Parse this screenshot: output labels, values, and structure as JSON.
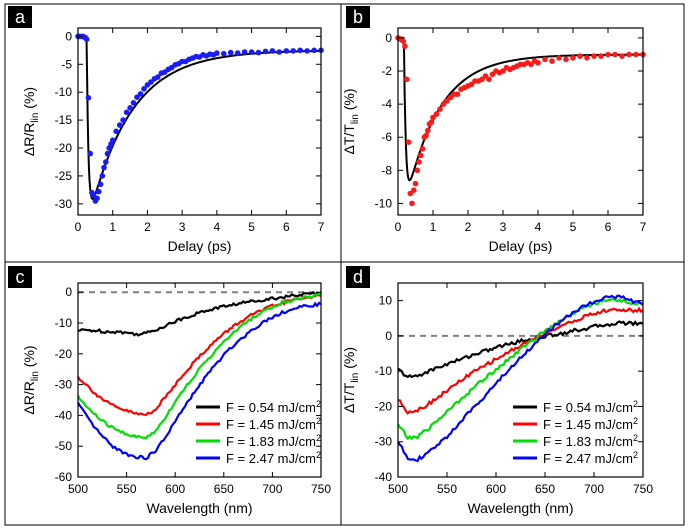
{
  "chart_data": [
    {
      "panel_label": "a",
      "type": "scatter",
      "xlabel": "Delay (ps)",
      "ylabel_main": "ΔR/R",
      "ylabel_sub": "lin",
      "ylabel_unit": " (%)",
      "xlim": [
        0,
        7
      ],
      "ylim": [
        -32,
        1.5
      ],
      "xticks": [
        0,
        1,
        2,
        3,
        4,
        5,
        6,
        7
      ],
      "yticks": [
        0,
        -5,
        -10,
        -15,
        -20,
        -25,
        -30
      ],
      "marker_color": "#1a1aff",
      "line_color": "#000000",
      "fit": {
        "t0": 0.25,
        "tau_rise": 0.05,
        "A": -34.5,
        "C": -2.5,
        "tau_decay": 1.2
      },
      "x": [
        0,
        0.05,
        0.1,
        0.15,
        0.2,
        0.25,
        0.3,
        0.35,
        0.4,
        0.45,
        0.5,
        0.55,
        0.6,
        0.65,
        0.7,
        0.75,
        0.8,
        0.85,
        0.9,
        0.95,
        1.0,
        1.1,
        1.2,
        1.3,
        1.4,
        1.5,
        1.6,
        1.7,
        1.8,
        1.9,
        2.0,
        2.1,
        2.2,
        2.3,
        2.4,
        2.5,
        2.6,
        2.7,
        2.8,
        2.9,
        3.0,
        3.1,
        3.2,
        3.3,
        3.4,
        3.5,
        3.6,
        3.7,
        3.8,
        3.9,
        4.0,
        4.2,
        4.4,
        4.6,
        4.8,
        5.0,
        5.2,
        5.4,
        5.6,
        5.8,
        6.0,
        6.2,
        6.4,
        6.6,
        6.8,
        7.0
      ],
      "y": [
        0,
        0,
        0,
        0,
        -0.2,
        -0.5,
        -11,
        -21,
        -28,
        -28.5,
        -29.5,
        -29,
        -27.8,
        -26.5,
        -25,
        -23.5,
        -22.5,
        -21,
        -20,
        -19.3,
        -18.6,
        -17,
        -15.9,
        -15,
        -13.6,
        -12.8,
        -11.9,
        -10.9,
        -10.3,
        -9.4,
        -8.7,
        -8.2,
        -7.6,
        -7.3,
        -6.6,
        -6.4,
        -5.9,
        -5.6,
        -5.1,
        -4.9,
        -4.5,
        -4.5,
        -4.1,
        -3.9,
        -3.6,
        -3.7,
        -3.3,
        -3.5,
        -3.2,
        -3.3,
        -3.0,
        -3.1,
        -2.9,
        -3.0,
        -2.8,
        -2.8,
        -2.9,
        -2.7,
        -2.6,
        -2.8,
        -2.6,
        -2.6,
        -2.5,
        -2.6,
        -2.5,
        -2.5
      ]
    },
    {
      "panel_label": "b",
      "type": "scatter",
      "xlabel": "Delay (ps)",
      "ylabel_main": "ΔT/T",
      "ylabel_sub": "lin",
      "ylabel_unit": " (%)",
      "xlim": [
        0,
        7
      ],
      "ylim": [
        -10.7,
        0.6
      ],
      "xticks": [
        0,
        1,
        2,
        3,
        4,
        5,
        6,
        7
      ],
      "yticks": [
        0,
        -2,
        -4,
        -6,
        -8,
        -10
      ],
      "marker_color": "#ff1a1a",
      "line_color": "#000000",
      "fit": {
        "t0": 0.17,
        "tau_rise": 0.05,
        "A": -10.5,
        "C": -1.0,
        "tau_decay": 0.95
      },
      "x": [
        0,
        0.05,
        0.1,
        0.15,
        0.2,
        0.25,
        0.3,
        0.35,
        0.4,
        0.45,
        0.5,
        0.55,
        0.6,
        0.65,
        0.7,
        0.75,
        0.8,
        0.85,
        0.9,
        0.95,
        1.0,
        1.1,
        1.2,
        1.3,
        1.4,
        1.5,
        1.6,
        1.7,
        1.8,
        1.9,
        2.0,
        2.1,
        2.2,
        2.3,
        2.4,
        2.5,
        2.6,
        2.7,
        2.8,
        2.9,
        3.0,
        3.1,
        3.2,
        3.3,
        3.4,
        3.5,
        3.6,
        3.7,
        3.8,
        3.9,
        4.0,
        4.2,
        4.4,
        4.6,
        4.8,
        5.0,
        5.2,
        5.4,
        5.6,
        5.8,
        6.0,
        6.2,
        6.4,
        6.6,
        6.8,
        7.0
      ],
      "y": [
        0,
        -0.05,
        -0.1,
        -0.2,
        -0.5,
        -2.5,
        -6.3,
        -9.4,
        -10.0,
        -9.2,
        -8.8,
        -8.0,
        -7.5,
        -7.1,
        -6.7,
        -6.0,
        -5.9,
        -5.6,
        -5.2,
        -5.1,
        -4.8,
        -4.6,
        -4.3,
        -4.0,
        -3.8,
        -3.6,
        -3.4,
        -3.4,
        -3.1,
        -3.0,
        -2.9,
        -2.8,
        -2.6,
        -2.6,
        -2.5,
        -2.3,
        -2.5,
        -2.2,
        -2.0,
        -2.1,
        -2.0,
        -1.8,
        -1.9,
        -1.8,
        -1.7,
        -1.6,
        -1.6,
        -1.5,
        -1.6,
        -1.4,
        -1.5,
        -1.3,
        -1.4,
        -1.2,
        -1.3,
        -1.2,
        -1.1,
        -1.2,
        -1.1,
        -1.1,
        -1.0,
        -1.0,
        -1.1,
        -1.0,
        -1.0,
        -1.0
      ]
    },
    {
      "panel_label": "c",
      "type": "line",
      "xlabel": "Wavelength (nm)",
      "ylabel_main": "ΔR/R",
      "ylabel_sub": "lin",
      "ylabel_unit": " (%)",
      "xlim": [
        500,
        750
      ],
      "ylim": [
        -60,
        3
      ],
      "xticks": [
        500,
        550,
        600,
        650,
        700,
        750
      ],
      "yticks": [
        0,
        -10,
        -20,
        -30,
        -40,
        -50,
        -60
      ],
      "zero_line": true,
      "legend_position": "bottom-right",
      "x": [
        500,
        510,
        520,
        530,
        540,
        550,
        560,
        570,
        580,
        590,
        600,
        610,
        620,
        630,
        640,
        650,
        660,
        670,
        680,
        690,
        700,
        710,
        720,
        730,
        740,
        750
      ],
      "series": [
        {
          "name": "F = 0.54 mJ/cm",
          "sup": "2",
          "color": "#000000",
          "values": [
            -12.5,
            -12.3,
            -12.5,
            -12.8,
            -12.8,
            -13.2,
            -13.6,
            -13.3,
            -12.2,
            -10.8,
            -9.5,
            -8.2,
            -7.2,
            -6.2,
            -5.3,
            -4.6,
            -4.0,
            -3.4,
            -2.9,
            -2.4,
            -2.0,
            -1.6,
            -1.2,
            -0.8,
            -0.5,
            -0.3
          ]
        },
        {
          "name": "F = 1.45 mJ/cm",
          "sup": "2",
          "color": "#ff0000",
          "values": [
            -27.5,
            -30.5,
            -33.5,
            -35.8,
            -37.5,
            -38.5,
            -39.5,
            -39.8,
            -38,
            -34,
            -30,
            -26,
            -22.5,
            -19.2,
            -16.2,
            -13.5,
            -11,
            -9,
            -7.2,
            -5.8,
            -4.5,
            -3.5,
            -2.6,
            -2,
            -1.5,
            -1.2
          ]
        },
        {
          "name": "F = 1.83 mJ/cm",
          "sup": "2",
          "color": "#00dd00",
          "values": [
            -34,
            -37.5,
            -40.5,
            -43,
            -44.8,
            -46,
            -47,
            -47.3,
            -45,
            -40.5,
            -35.5,
            -31,
            -27,
            -23,
            -19.5,
            -16.2,
            -13.2,
            -10.5,
            -8.2,
            -6.3,
            -4.8,
            -3.5,
            -2.6,
            -1.9,
            -1.3,
            -0.8
          ]
        },
        {
          "name": "F = 2.47 mJ/cm",
          "sup": "2",
          "color": "#0000ff",
          "values": [
            -36,
            -41,
            -45,
            -48.5,
            -51,
            -52.5,
            -53.5,
            -53.8,
            -51.5,
            -47,
            -42,
            -37,
            -32.5,
            -28,
            -24,
            -20.5,
            -17.2,
            -14.5,
            -12,
            -9.8,
            -8,
            -6.6,
            -5.6,
            -4.8,
            -4.2,
            -3.9
          ]
        }
      ]
    },
    {
      "panel_label": "d",
      "type": "line",
      "xlabel": "Wavelength (nm)",
      "ylabel_main": "ΔT/T",
      "ylabel_sub": "lin",
      "ylabel_unit": " (%)",
      "xlim": [
        500,
        750
      ],
      "ylim": [
        -40,
        15
      ],
      "xticks": [
        500,
        550,
        600,
        650,
        700,
        750
      ],
      "yticks": [
        10,
        0,
        -10,
        -20,
        -30,
        -40
      ],
      "zero_line": true,
      "legend_position": "bottom-right",
      "x": [
        500,
        510,
        520,
        530,
        540,
        550,
        560,
        570,
        580,
        590,
        600,
        610,
        620,
        630,
        640,
        650,
        660,
        670,
        680,
        690,
        700,
        710,
        720,
        730,
        740,
        750
      ],
      "series": [
        {
          "name": "F = 0.54 mJ/cm",
          "sup": "2",
          "color": "#000000",
          "values": [
            -9.5,
            -11.7,
            -11.3,
            -10.2,
            -9,
            -8,
            -7,
            -6,
            -5,
            -4.2,
            -3.3,
            -2.5,
            -1.8,
            -1.2,
            -0.6,
            -0.1,
            0.4,
            0.9,
            1.5,
            2.0,
            2.6,
            3.1,
            3.5,
            3.7,
            3.6,
            3.4
          ]
        },
        {
          "name": "F = 1.45 mJ/cm",
          "sup": "2",
          "color": "#ff0000",
          "values": [
            -18,
            -21.5,
            -21,
            -19.5,
            -17.5,
            -15.5,
            -13.5,
            -11.5,
            -9.8,
            -8.2,
            -6.6,
            -5,
            -3.5,
            -2,
            -0.6,
            0.8,
            2,
            3.2,
            4.3,
            5.4,
            6.3,
            7.0,
            7.4,
            7.4,
            7.2,
            7.3
          ]
        },
        {
          "name": "F = 1.83 mJ/cm",
          "sup": "2",
          "color": "#00dd00",
          "values": [
            -25,
            -29,
            -28.5,
            -26.5,
            -24,
            -21.5,
            -19,
            -16.5,
            -14,
            -11.7,
            -9.4,
            -7.2,
            -5,
            -2.8,
            -0.7,
            1.4,
            3.3,
            5.1,
            6.7,
            8.1,
            9.2,
            9.9,
            10.2,
            9.9,
            9.4,
            9.0
          ]
        },
        {
          "name": "F = 2.47 mJ/cm",
          "sup": "2",
          "color": "#0000ff",
          "values": [
            -30,
            -34.5,
            -35,
            -33.5,
            -31,
            -28.5,
            -25.5,
            -22.5,
            -19.5,
            -16.5,
            -13.5,
            -10.5,
            -7.6,
            -4.8,
            -2.1,
            0.5,
            2.8,
            4.9,
            6.8,
            8.4,
            9.8,
            10.8,
            11.2,
            10.8,
            9.8,
            8.8
          ]
        }
      ]
    }
  ]
}
